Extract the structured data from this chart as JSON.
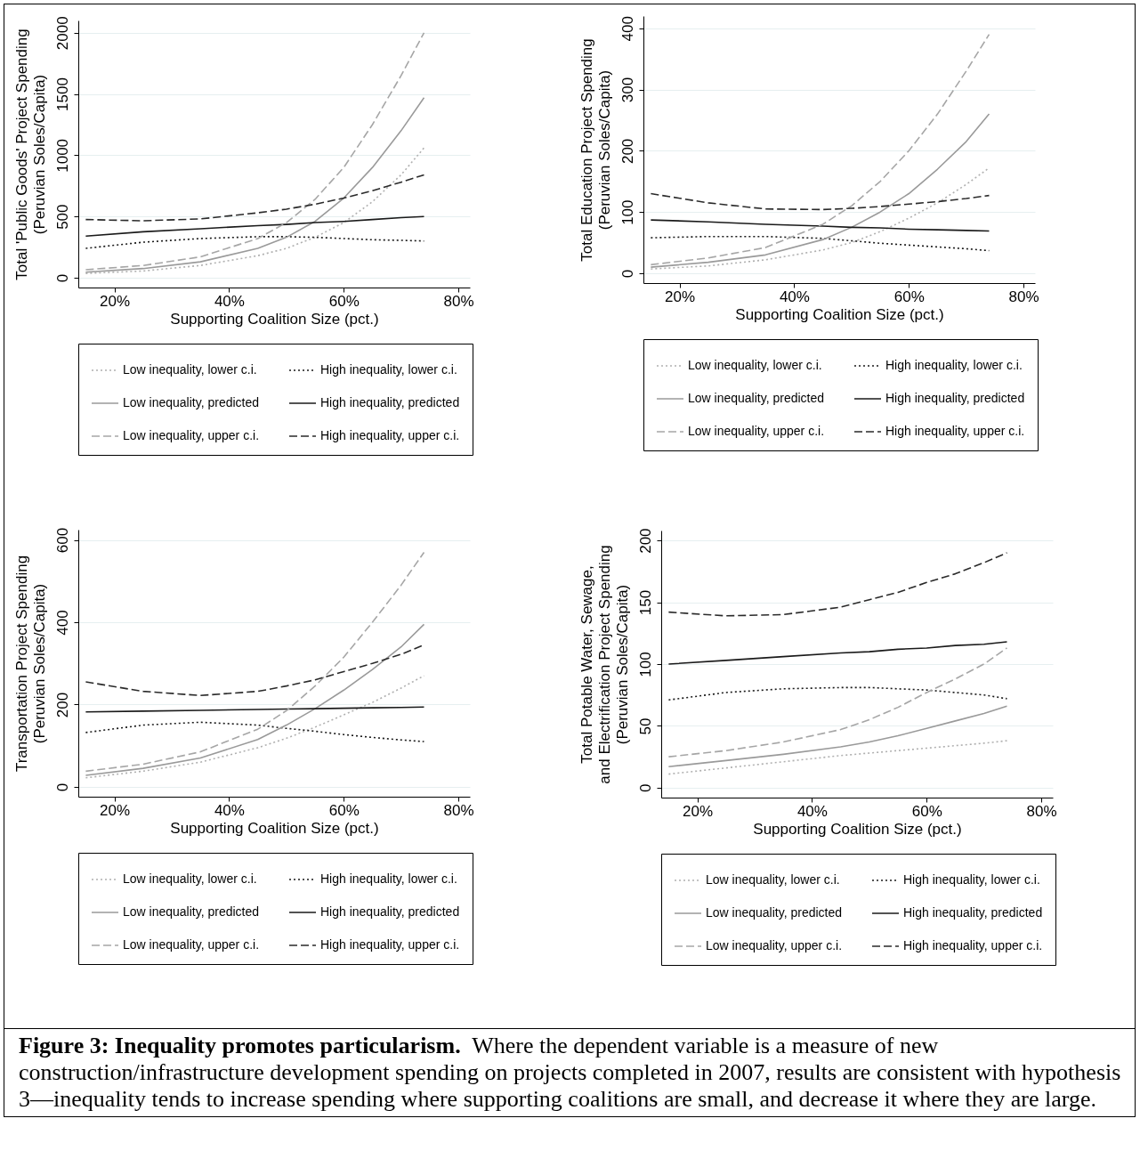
{
  "chart_data": [
    {
      "type": "line",
      "xlabel": "Supporting Coalition Size (pct.)",
      "ylabel": "Total 'Public Goods' Project Spending\n(Peruvian Soles/Capita)",
      "x": [
        15,
        25,
        35,
        45,
        50,
        55,
        60,
        65,
        70,
        74
      ],
      "xlim": [
        13.7,
        82
      ],
      "xticks": [
        {
          "value": 20,
          "label": "20%"
        },
        {
          "value": 40,
          "label": "40%"
        },
        {
          "value": 60,
          "label": "60%"
        },
        {
          "value": 80,
          "label": "80%"
        }
      ],
      "ylim": [
        -80,
        2100
      ],
      "yticks": [
        0,
        500,
        1000,
        1500,
        2000
      ],
      "grid": "y",
      "legend": "bottom",
      "series": [
        {
          "name": "Low inequality, lower c.i.",
          "color": "#b0b0b0",
          "line_style": "dotted",
          "values": [
            35,
            55,
            100,
            180,
            240,
            330,
            450,
            620,
            840,
            1060
          ]
        },
        {
          "name": "High inequality, lower c.i.",
          "color": "#1a1a1a",
          "line_style": "dotted",
          "values": [
            240,
            290,
            320,
            335,
            335,
            330,
            320,
            310,
            305,
            300
          ]
        },
        {
          "name": "Low inequality, predicted",
          "color": "#9a9a9a",
          "line_style": "solid",
          "values": [
            45,
            75,
            130,
            240,
            330,
            460,
            650,
            900,
            1200,
            1470
          ]
        },
        {
          "name": "High inequality, predicted",
          "color": "#1a1a1a",
          "line_style": "solid",
          "values": [
            340,
            375,
            400,
            425,
            435,
            450,
            460,
            475,
            490,
            500
          ]
        },
        {
          "name": "Low inequality, upper c.i.",
          "color": "#a6a6a6",
          "line_style": "dashed",
          "values": [
            65,
            100,
            170,
            320,
            450,
            640,
            900,
            1250,
            1650,
            2000
          ]
        },
        {
          "name": "High inequality, upper c.i.",
          "color": "#2a2a2a",
          "line_style": "dashed",
          "values": [
            475,
            465,
            480,
            530,
            560,
            600,
            650,
            710,
            780,
            840
          ]
        }
      ]
    },
    {
      "type": "line",
      "xlabel": "Supporting Coalition Size (pct.)",
      "ylabel": "Total Education Project Spending\n(Peruvian Soles/Capita)",
      "x": [
        15,
        25,
        35,
        45,
        50,
        55,
        60,
        65,
        70,
        74
      ],
      "xlim": [
        13.7,
        82
      ],
      "xticks": [
        {
          "value": 20,
          "label": "20%"
        },
        {
          "value": 40,
          "label": "40%"
        },
        {
          "value": 60,
          "label": "60%"
        },
        {
          "value": 80,
          "label": "80%"
        }
      ],
      "ylim": [
        -16,
        420
      ],
      "yticks": [
        0,
        100,
        200,
        300,
        400
      ],
      "grid": "y",
      "legend": "bottom",
      "series": [
        {
          "name": "Low inequality, lower c.i.",
          "color": "#b0b0b0",
          "line_style": "dotted",
          "values": [
            7,
            12,
            22,
            38,
            50,
            68,
            90,
            115,
            145,
            172
          ]
        },
        {
          "name": "High inequality, lower c.i.",
          "color": "#1a1a1a",
          "line_style": "dotted",
          "values": [
            58,
            60,
            60,
            57,
            53,
            49,
            46,
            43,
            40,
            37
          ]
        },
        {
          "name": "Low inequality, predicted",
          "color": "#9a9a9a",
          "line_style": "solid",
          "values": [
            10,
            18,
            30,
            55,
            75,
            100,
            130,
            170,
            215,
            260
          ]
        },
        {
          "name": "High inequality, predicted",
          "color": "#1a1a1a",
          "line_style": "solid",
          "values": [
            87,
            84,
            80,
            77,
            75,
            74,
            72,
            71,
            70,
            69
          ]
        },
        {
          "name": "Low inequality, upper c.i.",
          "color": "#a6a6a6",
          "line_style": "dashed",
          "values": [
            14,
            25,
            42,
            80,
            110,
            150,
            200,
            260,
            330,
            390
          ]
        },
        {
          "name": "High inequality, upper c.i.",
          "color": "#2a2a2a",
          "line_style": "dashed",
          "values": [
            130,
            115,
            105,
            104,
            106,
            109,
            113,
            117,
            122,
            127
          ]
        }
      ]
    },
    {
      "type": "line",
      "xlabel": "Supporting Coalition Size (pct.)",
      "ylabel": "Transportation Project Spending\n(Peruvian Soles/Capita)",
      "x": [
        15,
        25,
        35,
        45,
        50,
        55,
        60,
        65,
        70,
        74
      ],
      "xlim": [
        13.7,
        82
      ],
      "xticks": [
        {
          "value": 20,
          "label": "20%"
        },
        {
          "value": 40,
          "label": "40%"
        },
        {
          "value": 60,
          "label": "60%"
        },
        {
          "value": 80,
          "label": "80%"
        }
      ],
      "ylim": [
        -24,
        625
      ],
      "yticks": [
        0,
        200,
        400,
        600
      ],
      "grid": "y",
      "legend": "bottom",
      "series": [
        {
          "name": "Low inequality, lower c.i.",
          "color": "#b0b0b0",
          "line_style": "dotted",
          "values": [
            22,
            38,
            60,
            95,
            118,
            145,
            175,
            205,
            240,
            270
          ]
        },
        {
          "name": "High inequality, lower c.i.",
          "color": "#1a1a1a",
          "line_style": "dotted",
          "values": [
            132,
            150,
            157,
            150,
            142,
            135,
            127,
            120,
            114,
            110
          ]
        },
        {
          "name": "Low inequality, predicted",
          "color": "#9a9a9a",
          "line_style": "solid",
          "values": [
            28,
            45,
            70,
            115,
            150,
            190,
            235,
            285,
            340,
            395
          ]
        },
        {
          "name": "High inequality, predicted",
          "color": "#1a1a1a",
          "line_style": "solid",
          "values": [
            182,
            184,
            186,
            188,
            189,
            190,
            191,
            192,
            193,
            194
          ]
        },
        {
          "name": "Low inequality, upper c.i.",
          "color": "#a6a6a6",
          "line_style": "dashed",
          "values": [
            38,
            55,
            85,
            140,
            185,
            245,
            315,
            400,
            490,
            570
          ]
        },
        {
          "name": "High inequality, upper c.i.",
          "color": "#2a2a2a",
          "line_style": "dashed",
          "values": [
            255,
            232,
            222,
            232,
            245,
            260,
            280,
            300,
            322,
            345
          ]
        }
      ]
    },
    {
      "type": "line",
      "xlabel": "Supporting Coalition Size (pct.)",
      "ylabel": "Total Potable Water, Sewage,\nand Electrification Project Spending\n(Peruvian Soles/Capita)",
      "x": [
        15,
        25,
        35,
        45,
        50,
        55,
        60,
        65,
        70,
        74
      ],
      "xlim": [
        13.7,
        82
      ],
      "xticks": [
        {
          "value": 20,
          "label": "20%"
        },
        {
          "value": 40,
          "label": "40%"
        },
        {
          "value": 60,
          "label": "60%"
        },
        {
          "value": 80,
          "label": "80%"
        }
      ],
      "ylim": [
        -8,
        208
      ],
      "yticks": [
        0,
        50,
        100,
        150,
        200
      ],
      "grid": "y",
      "legend": "bottom",
      "annotations": [
        "Figure 3: Inequality promotes particularism.",
        "Where the dependent variable is a measure of new construction/infrastructure development spending on projects completed in 2007, results are consistent with hypothesis 3—inequality tends to increase spending where supporting coalitions are small, and decrease it where they are large."
      ],
      "series": [
        {
          "name": "Low inequality, lower c.i.",
          "color": "#b0b0b0",
          "line_style": "dotted",
          "values": [
            11,
            16,
            21,
            26,
            28,
            30,
            32,
            34,
            36,
            38
          ]
        },
        {
          "name": "High inequality, lower c.i.",
          "color": "#1a1a1a",
          "line_style": "dotted",
          "values": [
            71,
            77,
            80,
            81,
            81,
            80,
            79,
            77,
            75,
            72
          ]
        },
        {
          "name": "Low inequality, predicted",
          "color": "#9a9a9a",
          "line_style": "solid",
          "values": [
            17,
            22,
            27,
            33,
            37,
            42,
            48,
            54,
            60,
            66
          ]
        },
        {
          "name": "High inequality, predicted",
          "color": "#1a1a1a",
          "line_style": "solid",
          "values": [
            100,
            103,
            106,
            109,
            110,
            112,
            113,
            115,
            116,
            118
          ]
        },
        {
          "name": "Low inequality, upper c.i.",
          "color": "#a6a6a6",
          "line_style": "dashed",
          "values": [
            25,
            30,
            37,
            47,
            55,
            65,
            77,
            88,
            100,
            113
          ]
        },
        {
          "name": "High inequality, upper c.i.",
          "color": "#2a2a2a",
          "line_style": "dashed",
          "values": [
            142,
            139,
            140,
            146,
            152,
            158,
            166,
            173,
            182,
            190
          ]
        }
      ]
    }
  ]
}
